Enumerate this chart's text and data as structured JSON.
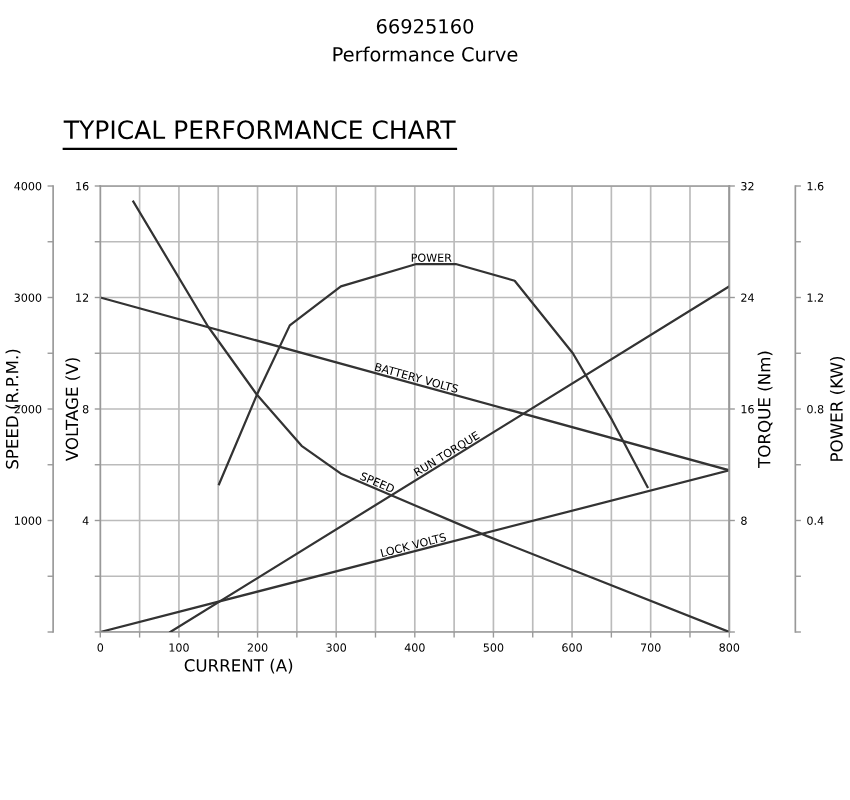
{
  "chart_data": [
    {
      "type": "line",
      "title": "66925160",
      "subtitle": "Performance Curve",
      "xlabel": "CURRENT (A)",
      "ylabel": "VOLTAGE (V)",
      "y2label": "SPEED (R.P.M.)",
      "xlim": [
        0,
        800
      ],
      "xticks": [
        0,
        {
          "value": 50,
          "label": null
        },
        100,
        {
          "value": 150,
          "label": null
        },
        200,
        {
          "value": 250,
          "label": null
        },
        300,
        {
          "value": 350,
          "label": null
        },
        400,
        {
          "value": 450,
          "label": null
        },
        500,
        {
          "value": 550,
          "label": null
        },
        600,
        {
          "value": 650,
          "label": null
        },
        700,
        {
          "value": 750,
          "label": null
        },
        800
      ],
      "ylim": [
        0,
        16
      ],
      "yticks": [
        {
          "value": 0,
          "label": null
        },
        {
          "value": 2,
          "label": null
        },
        4,
        {
          "value": 6,
          "label": null
        },
        8,
        {
          "value": 10,
          "label": null
        },
        12,
        {
          "value": 14,
          "label": null
        },
        16
      ],
      "y2lim": [
        0,
        4000
      ],
      "y2ticks": [
        {
          "value": 0,
          "label": null
        },
        {
          "value": 500,
          "label": null
        },
        1000,
        {
          "value": 1500,
          "label": null
        },
        2000,
        {
          "value": 2500,
          "label": null
        },
        3000,
        {
          "value": 3500,
          "label": null
        },
        4000
      ],
      "grid": true,
      "legend": false,
      "marker": "none",
      "line_style": "solid",
      "series": [
        {
          "name": "BATTERY VOLTS",
          "color": "#333333",
          "x": [
            0,
            800
          ],
          "values": [
            12,
            5.8
          ]
        },
        {
          "name": "LOCK VOLTS",
          "color": "#333333",
          "x": [
            0,
            800
          ],
          "values": [
            0,
            5.8
          ]
        },
        {
          "name": "SPEED",
          "axis": "y2",
          "color": "#333333",
          "x": [
            42,
            137,
            199,
            256,
            306,
            402,
            492,
            800
          ],
          "values": [
            3860,
            2740,
            2130,
            1670,
            1420,
            1130,
            860,
            0
          ]
        }
      ],
      "annotations": [
        "TYPICAL PERFORMANCE CHART"
      ]
    },
    {
      "type": "line",
      "y2label": "POWER (KW)",
      "ylabel": "TORQUE (Nm)",
      "xlim": [
        0,
        800
      ],
      "tick_labels": "y",
      "ylim": [
        0,
        32
      ],
      "yticks": [
        {
          "value": 0,
          "label": null
        },
        8,
        16,
        24,
        32
      ],
      "y2lim": [
        0,
        1.6
      ],
      "y2ticks": [
        {
          "value": 0,
          "label": null
        },
        {
          "value": 0.2,
          "label": null
        },
        0.4,
        {
          "value": 0.6,
          "label": null
        },
        0.8,
        {
          "value": 1.0,
          "label": null
        },
        1.2,
        {
          "value": 1.4,
          "label": null
        },
        1.6
      ],
      "legend": false,
      "marker": "none",
      "line_style": "solid",
      "series": [
        {
          "name": "RUN TORQUE",
          "color": "#333333",
          "x": [
            89,
            800
          ],
          "values": [
            0,
            24.8
          ]
        },
        {
          "name": "POWER",
          "axis": "y2",
          "color": "#333333",
          "x": [
            151,
            199,
            241,
            306,
            402,
            452,
            527,
            601,
            651,
            696
          ],
          "values": [
            0.53,
            0.85,
            1.1,
            1.24,
            1.32,
            1.32,
            1.26,
            1.0,
            0.76,
            0.52
          ]
        }
      ]
    }
  ]
}
